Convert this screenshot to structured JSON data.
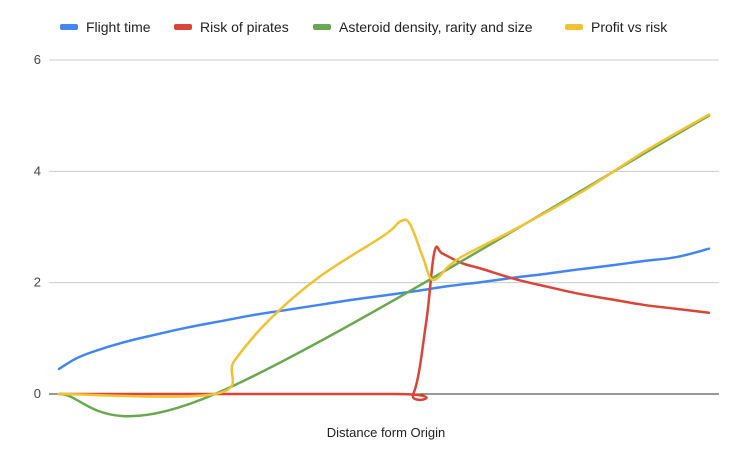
{
  "chart_data": {
    "type": "line",
    "title": "",
    "xlabel": "Distance form Origin",
    "ylabel": "",
    "xlim": [
      0,
      20
    ],
    "ylim": [
      0,
      6
    ],
    "yticks": [
      "0",
      "2",
      "4",
      "6"
    ],
    "grid": true,
    "legend_position": "top",
    "series": [
      {
        "name": "Flight time",
        "color": "#4285f4",
        "points": [
          [
            0,
            0.45
          ],
          [
            0.5,
            0.63
          ],
          [
            1,
            0.75
          ],
          [
            2,
            0.93
          ],
          [
            3,
            1.07
          ],
          [
            4,
            1.2
          ],
          [
            5,
            1.31
          ],
          [
            6,
            1.42
          ],
          [
            7,
            1.51
          ],
          [
            8,
            1.6
          ],
          [
            9,
            1.69
          ],
          [
            10,
            1.77
          ],
          [
            11,
            1.85
          ],
          [
            12,
            1.94
          ],
          [
            13,
            2.01
          ],
          [
            14,
            2.09
          ],
          [
            15,
            2.16
          ],
          [
            16,
            2.24
          ],
          [
            17,
            2.31
          ],
          [
            18,
            2.39
          ],
          [
            19,
            2.46
          ],
          [
            20,
            2.61
          ]
        ]
      },
      {
        "name": "Risk of pirates",
        "color": "#db4437",
        "points": [
          [
            0,
            0
          ],
          [
            10.3,
            0
          ],
          [
            10.9,
            0
          ],
          [
            11.3,
            1.3
          ],
          [
            11.55,
            2.55
          ],
          [
            11.8,
            2.52
          ],
          [
            12.4,
            2.35
          ],
          [
            13,
            2.25
          ],
          [
            14,
            2.07
          ],
          [
            15,
            1.93
          ],
          [
            16,
            1.8
          ],
          [
            17,
            1.7
          ],
          [
            18,
            1.6
          ],
          [
            19,
            1.53
          ],
          [
            20,
            1.46
          ]
        ]
      },
      {
        "name": "Asteroid density, rarity and size",
        "color": "#6aa84f",
        "points": [
          [
            0,
            0
          ],
          [
            4.8,
            0
          ],
          [
            20,
            5
          ]
        ]
      },
      {
        "name": "Profit vs risk",
        "color": "#f1c232",
        "points": [
          [
            0,
            0
          ],
          [
            4.8,
            0
          ],
          [
            5.4,
            0.6
          ],
          [
            6.5,
            1.35
          ],
          [
            8,
            2.1
          ],
          [
            10,
            2.85
          ],
          [
            10.5,
            3.1
          ],
          [
            10.8,
            3.05
          ],
          [
            11.2,
            2.45
          ],
          [
            11.5,
            2.05
          ],
          [
            12,
            2.3
          ],
          [
            12.5,
            2.5
          ],
          [
            14,
            2.95
          ],
          [
            16,
            3.6
          ],
          [
            18,
            4.35
          ],
          [
            20,
            5.02
          ]
        ]
      }
    ]
  }
}
